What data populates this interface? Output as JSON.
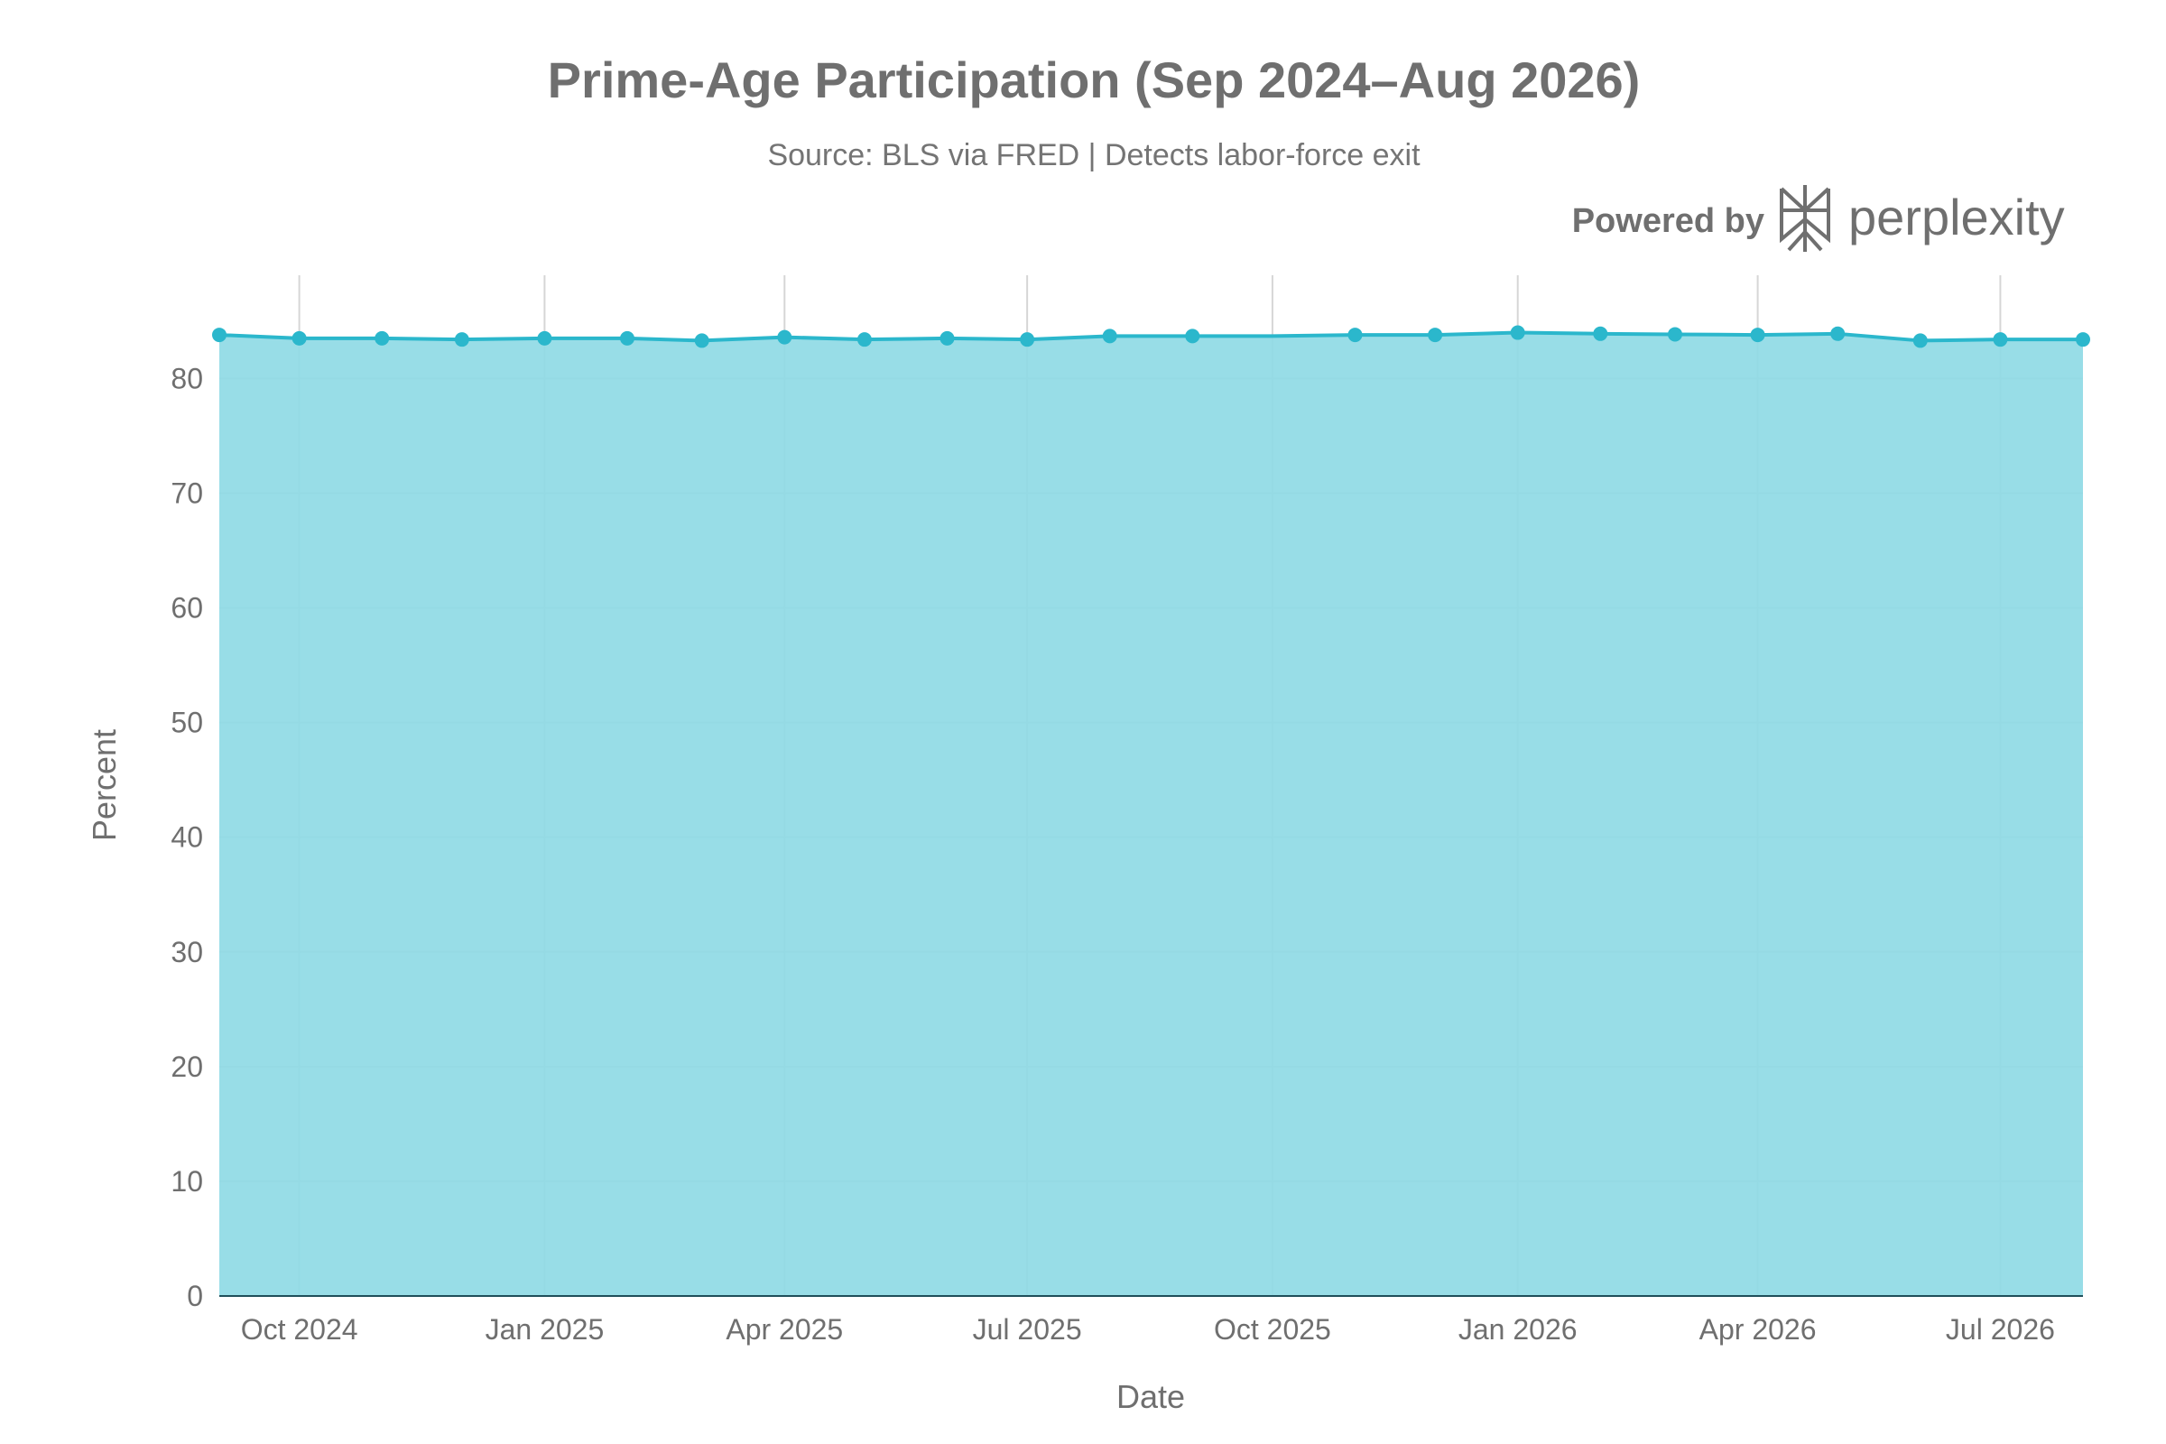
{
  "brand": {
    "powered_by": "Powered by",
    "name": "perplexity",
    "logo_icon": "perplexity-logo-icon"
  },
  "chart_data": {
    "type": "area",
    "title": "Prime-Age Participation (Sep 2024–Aug 2026)",
    "subtitle": "Source: BLS via FRED | Detects labor-force exit",
    "xlabel": "Date",
    "ylabel": "Percent",
    "x": [
      "2024-09-01",
      "2024-10-01",
      "2024-11-01",
      "2024-12-01",
      "2025-01-01",
      "2025-02-01",
      "2025-03-01",
      "2025-04-01",
      "2025-05-01",
      "2025-06-01",
      "2025-07-01",
      "2025-08-01",
      "2025-09-01",
      "2025-10-01",
      "2025-11-01",
      "2025-12-01",
      "2026-01-01",
      "2026-02-01",
      "2026-03-01",
      "2026-04-01",
      "2026-05-01",
      "2026-06-01",
      "2026-07-01",
      "2026-08-01"
    ],
    "values": [
      83.8,
      83.5,
      83.5,
      83.4,
      83.5,
      83.5,
      83.3,
      83.6,
      83.4,
      83.5,
      83.4,
      83.7,
      83.7,
      83.7,
      83.8,
      83.8,
      84.0,
      83.9,
      83.85,
      83.8,
      83.9,
      83.3,
      83.4,
      83.4
    ],
    "marker_shown": [
      true,
      true,
      true,
      true,
      true,
      true,
      true,
      true,
      true,
      true,
      true,
      true,
      true,
      false,
      true,
      true,
      true,
      true,
      true,
      true,
      true,
      true,
      true,
      true
    ],
    "ylim": [
      0,
      89
    ],
    "yticks": [
      0,
      10,
      20,
      30,
      40,
      50,
      60,
      70,
      80
    ],
    "xticks": [
      {
        "date": "2024-10-01",
        "label": "Oct 2024"
      },
      {
        "date": "2025-01-01",
        "label": "Jan 2025"
      },
      {
        "date": "2025-04-01",
        "label": "Apr 2025"
      },
      {
        "date": "2025-07-01",
        "label": "Jul 2025"
      },
      {
        "date": "2025-10-01",
        "label": "Oct 2025"
      },
      {
        "date": "2026-01-01",
        "label": "Jan 2026"
      },
      {
        "date": "2026-04-01",
        "label": "Apr 2026"
      },
      {
        "date": "2026-07-01",
        "label": "Jul 2026"
      }
    ],
    "grid": true,
    "colors": {
      "line": "#2bb7cc",
      "fill": "#8fdae5",
      "marker": "#2bb7cc",
      "grid": "#d6d6d6",
      "axis": "#1f4f5a"
    }
  }
}
